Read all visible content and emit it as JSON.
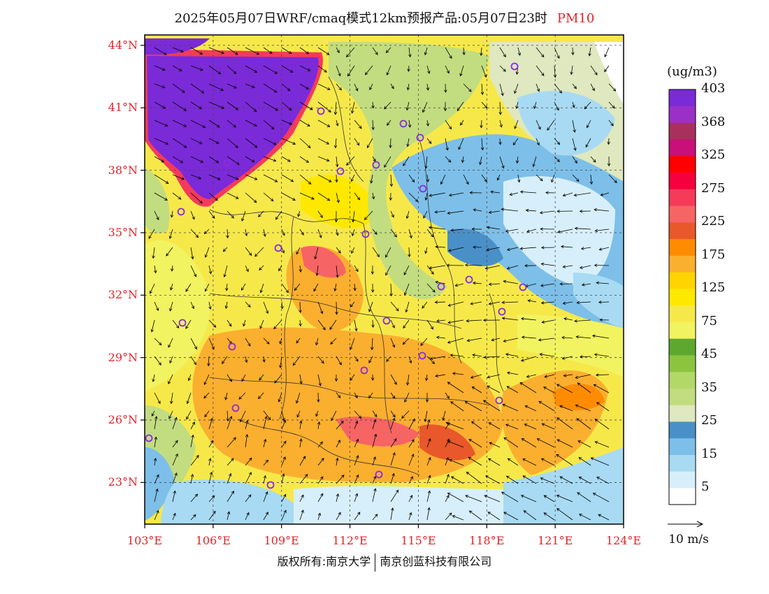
{
  "title": {
    "main": "2025年05月07日WRF/cmaq模式12km预报产品:05月07日23时",
    "pollutant": "PM10",
    "pollutant_color": "#e0242a"
  },
  "map": {
    "lat_labels": [
      "44°N",
      "41°N",
      "38°N",
      "35°N",
      "32°N",
      "29°N",
      "26°N",
      "23°N"
    ],
    "lat_values": [
      44,
      41,
      38,
      35,
      32,
      29,
      26,
      23
    ],
    "lon_labels": [
      "103°E",
      "106°E",
      "109°E",
      "112°E",
      "115°E",
      "118°E",
      "121°E",
      "124°E"
    ],
    "lon_values": [
      103,
      106,
      109,
      112,
      115,
      118,
      121,
      124
    ],
    "lon_range": [
      103,
      124
    ],
    "lat_range": [
      21,
      44.5
    ],
    "label_color": "#e0242a",
    "station_markers_color": "#8a2be2"
  },
  "legend": {
    "unit": "(ug/m3)",
    "colors": [
      "#ffffff",
      "#d7effb",
      "#a8daf3",
      "#7dbfe8",
      "#4a90c8",
      "#dfe8be",
      "#c2dc80",
      "#b2d868",
      "#8cc440",
      "#5fa830",
      "#f2f360",
      "#f7e84a",
      "#ffe800",
      "#ffd400",
      "#fbaf2f",
      "#ff8c00",
      "#e8582a",
      "#f76464",
      "#f53a5a",
      "#f5003c",
      "#ff0000",
      "#c80f7a",
      "#a8305a",
      "#9b30c8",
      "#7b2ad8"
    ],
    "labels": [
      "5",
      "15",
      "25",
      "35",
      "45",
      "75",
      "125",
      "175",
      "225",
      "275",
      "325",
      "368",
      "403"
    ],
    "vector_label": "10 m/s"
  },
  "footer": {
    "copyright_left": "版权所有:南京大学",
    "copyright_right": "南京创蓝科技有限公司"
  }
}
